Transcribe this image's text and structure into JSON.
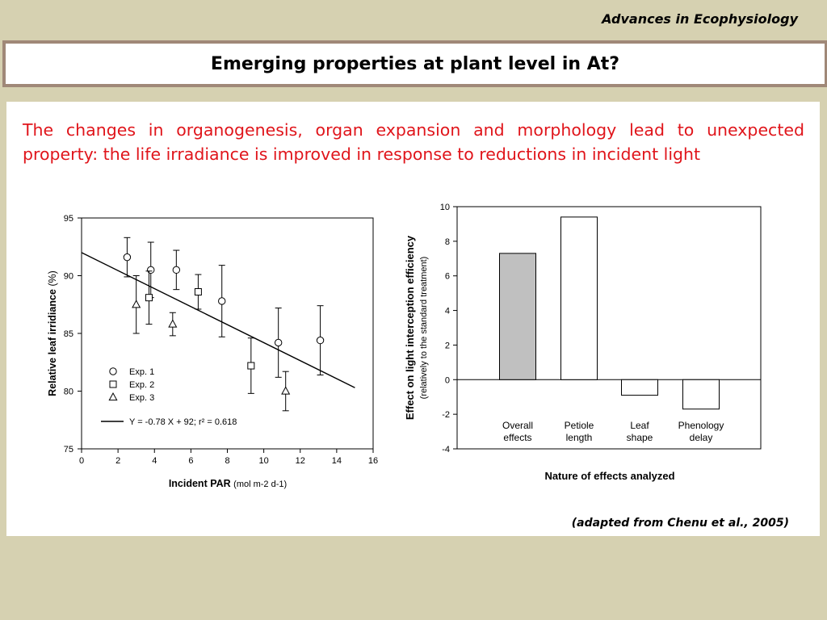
{
  "header": {
    "label": "Advances in Ecophysiology"
  },
  "title": "Emerging properties at plant level in At?",
  "body_text": "The changes in organogenesis, organ expansion and morphology lead to unexpected property: the life irradiance is improved in response to reductions in incident light",
  "citation": "(adapted from Chenu et al., 2005)",
  "chart_data": [
    {
      "type": "scatter",
      "xlabel": "Incident PAR",
      "xlabel_unit": "(mol m-2 d-1)",
      "ylabel": "Relative leaf irridiance",
      "ylabel_unit": "(%)",
      "xlim": [
        0,
        16
      ],
      "ylim": [
        75,
        95
      ],
      "x_ticks": [
        "0",
        "2",
        "4",
        "6",
        "8",
        "10",
        "12",
        "14",
        "16"
      ],
      "y_ticks": [
        "75",
        "80",
        "85",
        "90",
        "95"
      ],
      "series": [
        {
          "name": "Exp. 1",
          "marker": "circle",
          "points": [
            {
              "x": 2.5,
              "y": 91.6,
              "err": 1.7
            },
            {
              "x": 3.8,
              "y": 90.5,
              "err": 2.4
            },
            {
              "x": 5.2,
              "y": 90.5,
              "err": 1.7
            },
            {
              "x": 7.7,
              "y": 87.8,
              "err": 3.1
            },
            {
              "x": 10.8,
              "y": 84.2,
              "err": 3.0
            },
            {
              "x": 13.1,
              "y": 84.4,
              "err": 3.0
            }
          ]
        },
        {
          "name": "Exp. 2",
          "marker": "square",
          "points": [
            {
              "x": 3.7,
              "y": 88.1,
              "err": 2.3
            },
            {
              "x": 6.4,
              "y": 88.6,
              "err": 1.5
            },
            {
              "x": 9.3,
              "y": 82.2,
              "err": 2.4
            }
          ]
        },
        {
          "name": "Exp. 3",
          "marker": "triangle",
          "points": [
            {
              "x": 3.0,
              "y": 87.5,
              "err": 2.5
            },
            {
              "x": 5.0,
              "y": 85.8,
              "err": 1.0
            },
            {
              "x": 11.2,
              "y": 80.0,
              "err": 1.7
            }
          ]
        }
      ],
      "fit": {
        "label": "Y = -0.78 X + 92; r² = 0.618",
        "slope": -0.78,
        "intercept": 92,
        "x_range": [
          0,
          15
        ]
      }
    },
    {
      "type": "bar",
      "xlabel": "Nature of effects analyzed",
      "ylabel": "Effect on light interception efficiency",
      "ylabel_sub": "(relatively to the standard treatment)",
      "ylim": [
        -4,
        10
      ],
      "y_ticks": [
        "-4",
        "-2",
        "0",
        "2",
        "4",
        "6",
        "8",
        "10"
      ],
      "categories": [
        {
          "line1": "Overall",
          "line2": "effects"
        },
        {
          "line1": "Petiole",
          "line2": "length"
        },
        {
          "line1": "Leaf",
          "line2": "shape"
        },
        {
          "line1": "Phenology",
          "line2": "delay"
        }
      ],
      "values": [
        7.3,
        9.4,
        -0.9,
        -1.7
      ],
      "bar_colors": [
        "#c0c0c0",
        "#ffffff",
        "#ffffff",
        "#ffffff"
      ]
    }
  ]
}
